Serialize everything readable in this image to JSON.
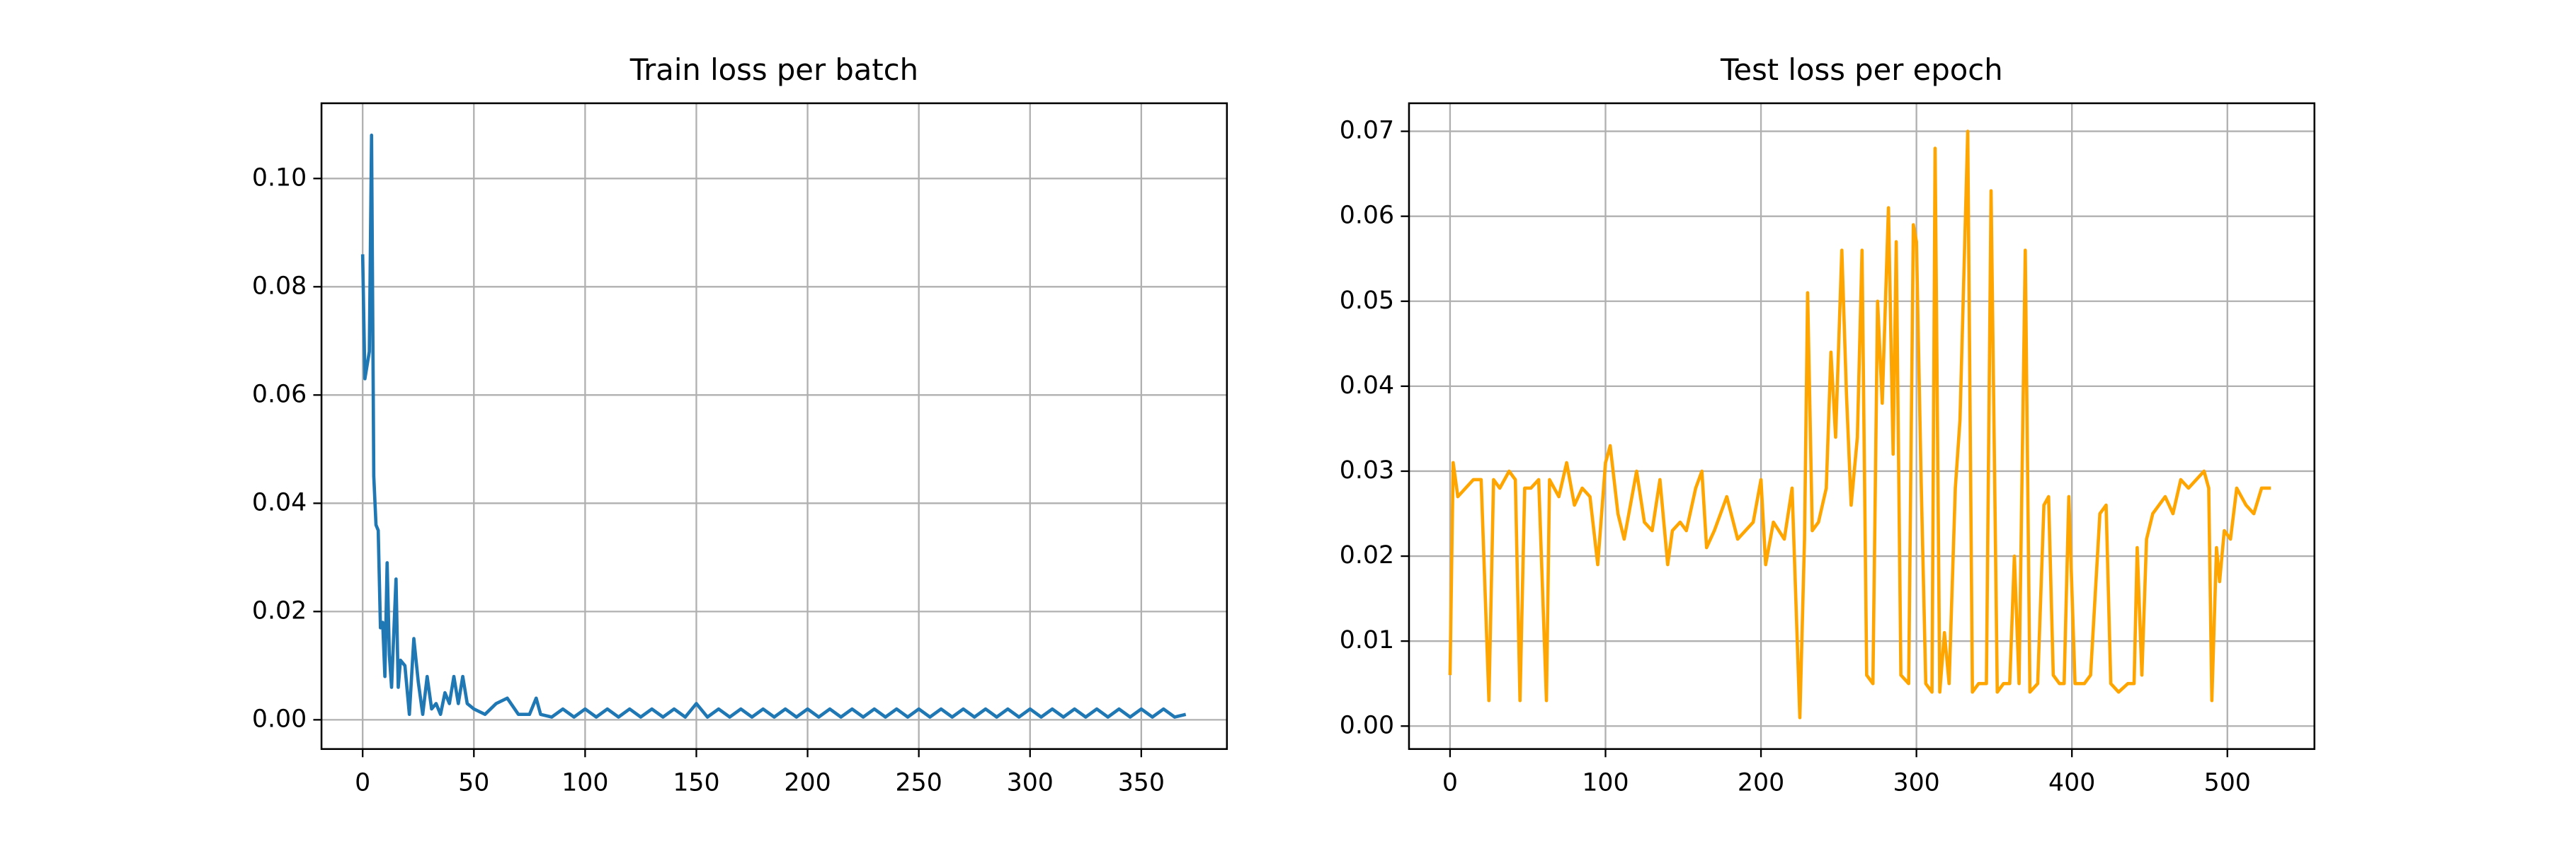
{
  "chart_data": [
    {
      "type": "line",
      "title": "Train loss per batch",
      "grid": true,
      "xlim": [
        -18.5,
        388.5
      ],
      "xticks": [
        0,
        50,
        100,
        150,
        200,
        250,
        300,
        350
      ],
      "ylim": [
        -0.0054,
        0.1139
      ],
      "yticks": [
        {
          "value": 0,
          "label": "0.00"
        },
        {
          "value": 0.02,
          "label": "0.02"
        },
        {
          "value": 0.04,
          "label": "0.04"
        },
        {
          "value": 0.06,
          "label": "0.06"
        },
        {
          "value": 0.08,
          "label": "0.08"
        },
        {
          "value": 0.1,
          "label": "0.10"
        }
      ],
      "x": [
        0,
        1,
        3,
        4,
        5,
        6,
        7,
        8,
        9,
        10,
        11,
        12,
        13,
        15,
        16,
        17,
        19,
        21,
        23,
        25,
        27,
        29,
        31,
        33,
        35,
        37,
        39,
        41,
        43,
        45,
        47,
        50,
        55,
        60,
        65,
        70,
        75,
        78,
        80,
        85,
        90,
        95,
        100,
        105,
        110,
        115,
        120,
        125,
        130,
        135,
        140,
        145,
        150,
        155,
        160,
        165,
        170,
        175,
        180,
        185,
        190,
        195,
        200,
        205,
        210,
        215,
        220,
        225,
        230,
        235,
        240,
        245,
        250,
        255,
        260,
        265,
        270,
        275,
        280,
        285,
        290,
        295,
        300,
        305,
        310,
        315,
        320,
        325,
        330,
        335,
        340,
        345,
        350,
        355,
        360,
        365,
        370
      ],
      "series": [
        {
          "color": "#1f77b4",
          "values": [
            0.086,
            0.063,
            0.068,
            0.108,
            0.045,
            0.036,
            0.035,
            0.017,
            0.018,
            0.008,
            0.029,
            0.012,
            0.006,
            0.026,
            0.006,
            0.011,
            0.01,
            0.001,
            0.015,
            0.007,
            0.001,
            0.008,
            0.002,
            0.003,
            0.001,
            0.005,
            0.003,
            0.008,
            0.003,
            0.008,
            0.003,
            0.002,
            0.001,
            0.003,
            0.004,
            0.001,
            0.001,
            0.004,
            0.001,
            0.0005,
            0.002,
            0.0005,
            0.002,
            0.0005,
            0.002,
            0.0005,
            0.002,
            0.0005,
            0.002,
            0.0005,
            0.002,
            0.0005,
            0.003,
            0.0005,
            0.002,
            0.0005,
            0.002,
            0.0005,
            0.002,
            0.0005,
            0.002,
            0.0005,
            0.002,
            0.0005,
            0.002,
            0.0005,
            0.002,
            0.0005,
            0.002,
            0.0005,
            0.002,
            0.0005,
            0.002,
            0.0005,
            0.002,
            0.0005,
            0.002,
            0.0005,
            0.002,
            0.0005,
            0.002,
            0.0005,
            0.002,
            0.0005,
            0.002,
            0.0005,
            0.002,
            0.0005,
            0.002,
            0.0005,
            0.002,
            0.0005,
            0.002,
            0.0005,
            0.002,
            0.0005,
            0.001
          ]
        }
      ]
    },
    {
      "type": "line",
      "title": "Test loss per epoch",
      "grid": true,
      "xlim": [
        -26.4,
        556
      ],
      "xticks": [
        0,
        100,
        200,
        300,
        400,
        500
      ],
      "ylim": [
        -0.0027,
        0.0733
      ],
      "yticks": [
        {
          "value": 0,
          "label": "0.00"
        },
        {
          "value": 0.01,
          "label": "0.01"
        },
        {
          "value": 0.02,
          "label": "0.02"
        },
        {
          "value": 0.03,
          "label": "0.03"
        },
        {
          "value": 0.04,
          "label": "0.04"
        },
        {
          "value": 0.05,
          "label": "0.05"
        },
        {
          "value": 0.06,
          "label": "0.06"
        },
        {
          "value": 0.07,
          "label": "0.07"
        }
      ],
      "x": [
        0,
        2,
        5,
        10,
        15,
        20,
        25,
        28,
        32,
        38,
        42,
        45,
        48,
        52,
        57,
        62,
        64,
        70,
        75,
        80,
        85,
        90,
        95,
        100,
        103,
        108,
        112,
        116,
        120,
        125,
        130,
        135,
        140,
        143,
        148,
        152,
        158,
        162,
        165,
        170,
        178,
        185,
        190,
        195,
        200,
        203,
        208,
        215,
        220,
        225,
        228,
        230,
        233,
        237,
        242,
        245,
        248,
        252,
        255,
        258,
        262,
        265,
        268,
        272,
        275,
        278,
        282,
        285,
        287,
        290,
        295,
        298,
        300,
        303,
        306,
        310,
        312,
        315,
        318,
        321,
        325,
        328,
        333,
        336,
        340,
        345,
        348,
        352,
        356,
        360,
        363,
        366,
        370,
        373,
        378,
        382,
        385,
        388,
        392,
        395,
        398,
        402,
        408,
        412,
        418,
        422,
        425,
        430,
        436,
        440,
        442,
        445,
        448,
        452,
        456,
        460,
        465,
        470,
        475,
        480,
        485,
        488,
        490,
        493,
        495,
        498,
        502,
        506,
        512,
        517,
        522,
        528
      ],
      "series": [
        {
          "color": "#ffa500",
          "values": [
            0.006,
            0.031,
            0.027,
            0.028,
            0.029,
            0.029,
            0.003,
            0.029,
            0.028,
            0.03,
            0.029,
            0.003,
            0.028,
            0.028,
            0.029,
            0.003,
            0.029,
            0.027,
            0.031,
            0.026,
            0.028,
            0.027,
            0.019,
            0.031,
            0.033,
            0.025,
            0.022,
            0.026,
            0.03,
            0.024,
            0.023,
            0.029,
            0.019,
            0.023,
            0.024,
            0.023,
            0.028,
            0.03,
            0.021,
            0.023,
            0.027,
            0.022,
            0.023,
            0.024,
            0.029,
            0.019,
            0.024,
            0.022,
            0.028,
            0.001,
            0.022,
            0.051,
            0.023,
            0.024,
            0.028,
            0.044,
            0.034,
            0.056,
            0.039,
            0.026,
            0.034,
            0.056,
            0.006,
            0.005,
            0.05,
            0.038,
            0.061,
            0.032,
            0.057,
            0.006,
            0.005,
            0.059,
            0.057,
            0.029,
            0.005,
            0.004,
            0.068,
            0.004,
            0.011,
            0.005,
            0.028,
            0.036,
            0.07,
            0.004,
            0.005,
            0.005,
            0.063,
            0.004,
            0.005,
            0.005,
            0.02,
            0.005,
            0.056,
            0.004,
            0.005,
            0.026,
            0.027,
            0.006,
            0.005,
            0.005,
            0.027,
            0.005,
            0.005,
            0.006,
            0.025,
            0.026,
            0.005,
            0.004,
            0.005,
            0.005,
            0.021,
            0.006,
            0.022,
            0.025,
            0.026,
            0.027,
            0.025,
            0.029,
            0.028,
            0.029,
            0.03,
            0.028,
            0.003,
            0.021,
            0.017,
            0.023,
            0.022,
            0.028,
            0.026,
            0.025,
            0.028,
            0.028
          ]
        }
      ]
    }
  ]
}
